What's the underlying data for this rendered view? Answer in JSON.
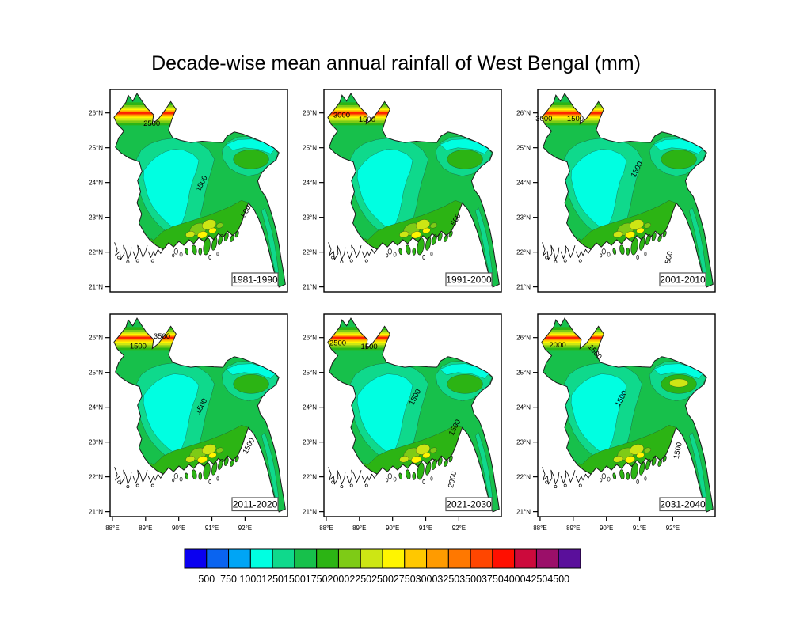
{
  "chart_data": {
    "type": "heatmap",
    "title": "Decade-wise mean annual rainfall of West Bengal (mm)",
    "units": "mm",
    "x_axis": {
      "ticks": [
        "88°E",
        "89°E",
        "90°E",
        "91°E",
        "92°E"
      ]
    },
    "y_axis": {
      "ticks": [
        "21°N",
        "22°N",
        "23°N",
        "24°N",
        "25°N",
        "26°N"
      ]
    },
    "panels": [
      {
        "decade": "1981-1990",
        "contour_labels": [
          {
            "text": "2500",
            "u": 0.235,
            "v": 0.18,
            "rot": 0
          },
          {
            "text": "1500",
            "u": 0.527,
            "v": 0.47,
            "rot": -62
          },
          {
            "text": "500",
            "u": 0.778,
            "v": 0.607,
            "rot": -62
          }
        ]
      },
      {
        "decade": "1991-2000",
        "contour_labels": [
          {
            "text": "3000",
            "u": 0.1,
            "v": 0.138,
            "rot": 0
          },
          {
            "text": "1500",
            "u": 0.243,
            "v": 0.16,
            "rot": 0
          },
          {
            "text": "500",
            "u": 0.755,
            "v": 0.648,
            "rot": -62
          }
        ]
      },
      {
        "decade": "2001-2010",
        "contour_labels": [
          {
            "text": "3000",
            "u": 0.035,
            "v": 0.156,
            "rot": 0
          },
          {
            "text": "1500",
            "u": 0.212,
            "v": 0.156,
            "rot": 0
          },
          {
            "text": "1500",
            "u": 0.57,
            "v": 0.4,
            "rot": -62
          },
          {
            "text": "500",
            "u": 0.752,
            "v": 0.832,
            "rot": -78
          }
        ]
      },
      {
        "decade": "2011-2020",
        "contour_labels": [
          {
            "text": "3500",
            "u": 0.292,
            "v": 0.122,
            "rot": 0,
            "color": "#a50000"
          },
          {
            "text": "1500",
            "u": 0.158,
            "v": 0.17,
            "rot": 0
          },
          {
            "text": "1500",
            "u": 0.525,
            "v": 0.461,
            "rot": -62
          },
          {
            "text": "1500",
            "u": 0.793,
            "v": 0.656,
            "rot": -62
          }
        ]
      },
      {
        "decade": "2021-2030",
        "contour_labels": [
          {
            "text": "2500",
            "u": 0.078,
            "v": 0.155,
            "rot": 0
          },
          {
            "text": "1500",
            "u": 0.255,
            "v": 0.171,
            "rot": 0
          },
          {
            "text": "1500",
            "u": 0.525,
            "v": 0.415,
            "rot": -62
          },
          {
            "text": "1500",
            "u": 0.749,
            "v": 0.565,
            "rot": -62
          },
          {
            "text": "2000",
            "u": 0.737,
            "v": 0.819,
            "rot": -78
          }
        ]
      },
      {
        "decade": "2031-2040",
        "contour_labels": [
          {
            "text": "2000",
            "u": 0.112,
            "v": 0.165,
            "rot": 0
          },
          {
            "text": "1500",
            "u": 0.312,
            "v": 0.194,
            "rot": 50
          },
          {
            "text": "1500",
            "u": 0.482,
            "v": 0.422,
            "rot": -62
          },
          {
            "text": "1500",
            "u": 0.802,
            "v": 0.676,
            "rot": -78
          }
        ]
      }
    ],
    "colorbar": {
      "tick_labels": [
        "500",
        "750",
        "1000",
        "1250",
        "1500",
        "1750",
        "2000",
        "2250",
        "2500",
        "2750",
        "3000",
        "3250",
        "3500",
        "3750",
        "4000",
        "4250",
        "4500"
      ],
      "colors": [
        "#0a00f0",
        "#0a64f0",
        "#00a5f5",
        "#00ffe1",
        "#0fd98c",
        "#17c04b",
        "#2cb414",
        "#7ecb16",
        "#cde614",
        "#fff500",
        "#ffc800",
        "#ff9b00",
        "#ff7800",
        "#ff4600",
        "#ff0f00",
        "#cc0a3c",
        "#9b0f69",
        "#5a0f9b"
      ]
    }
  }
}
